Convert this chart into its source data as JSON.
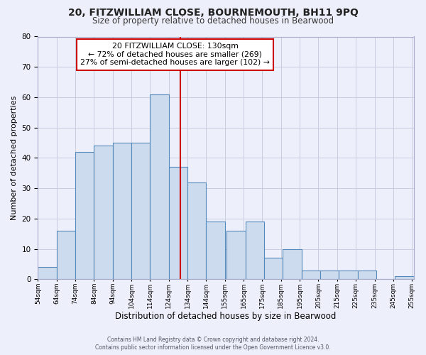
{
  "title": "20, FITZWILLIAM CLOSE, BOURNEMOUTH, BH11 9PQ",
  "subtitle": "Size of property relative to detached houses in Bearwood",
  "xlabel": "Distribution of detached houses by size in Bearwood",
  "ylabel": "Number of detached properties",
  "bin_labels": [
    "54sqm",
    "64sqm",
    "74sqm",
    "84sqm",
    "94sqm",
    "104sqm",
    "114sqm",
    "124sqm",
    "134sqm",
    "144sqm",
    "155sqm",
    "165sqm",
    "175sqm",
    "185sqm",
    "195sqm",
    "205sqm",
    "215sqm",
    "225sqm",
    "235sqm",
    "245sqm",
    "255sqm"
  ],
  "bin_starts": [
    54,
    64,
    74,
    84,
    94,
    104,
    114,
    124,
    134,
    144,
    155,
    165,
    175,
    185,
    195,
    205,
    215,
    225,
    235,
    245
  ],
  "bin_width": 10,
  "bar_heights": [
    4,
    16,
    42,
    44,
    45,
    45,
    61,
    37,
    32,
    19,
    16,
    19,
    7,
    10,
    3,
    3,
    3,
    3,
    0,
    1
  ],
  "bar_facecolor": "#ccdcee",
  "bar_edgecolor": "#5588bb",
  "property_line_x": 130,
  "property_line_color": "#cc0000",
  "annotation_text": "20 FITZWILLIAM CLOSE: 130sqm\n← 72% of detached houses are smaller (269)\n27% of semi-detached houses are larger (102) →",
  "annotation_box_edgecolor": "#cc0000",
  "ylim": [
    0,
    80
  ],
  "yticks": [
    0,
    10,
    20,
    30,
    40,
    50,
    60,
    70,
    80
  ],
  "xlim_left": 54,
  "xlim_right": 255,
  "grid_color": "#c8cce0",
  "bg_color": "#edf0fa",
  "footer_line1": "Contains HM Land Registry data © Crown copyright and database right 2024.",
  "footer_line2": "Contains public sector information licensed under the Open Government Licence v3.0."
}
